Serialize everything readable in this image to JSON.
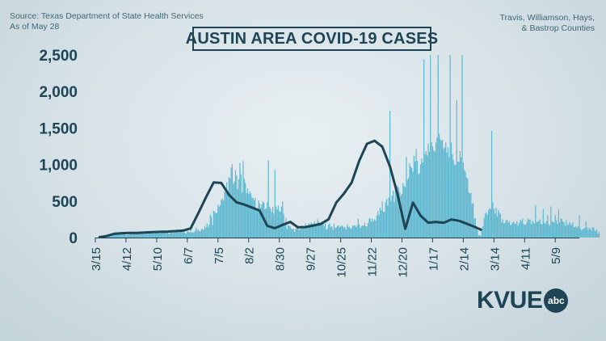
{
  "source": "Source: Texas Department of State Health Services",
  "as_of": "As of May 28",
  "counties_line1": "Travis, Williamson, Hays,",
  "counties_line2": "& Bastrop Counties",
  "logo_text": "KVUE",
  "logo_badge": "abc",
  "colors": {
    "bar": "#5fb8d0",
    "bar_stroke": "#4aa9c4",
    "line": "#1d4555",
    "text": "#1d4555"
  },
  "chart_data": {
    "type": "bar",
    "title": "AUSTIN AREA COVID-19 CASES",
    "xlabel": "",
    "ylabel": "",
    "ylim": [
      0,
      2500
    ],
    "y_ticks": [
      "0",
      "500",
      "1,000",
      "1,500",
      "2,000",
      "2,500"
    ],
    "y_tick_values": [
      0,
      500,
      1000,
      1500,
      2000,
      2500
    ],
    "x_ticks": [
      "3/15",
      "4/12",
      "5/10",
      "6/7",
      "7/5",
      "8/2",
      "8/30",
      "9/27",
      "10/25",
      "11/22",
      "12/20",
      "1/17",
      "2/14",
      "3/14",
      "4/11",
      "5/9"
    ],
    "x_start": "2020-03-15",
    "x_end": "2021-05-28",
    "grid": false,
    "series": [
      {
        "kind": "bar",
        "granularity": "daily",
        "values": [
          2,
          0,
          3,
          2,
          10,
          14,
          0,
          19,
          20,
          13,
          21,
          22,
          25,
          37,
          18,
          53,
          49,
          55,
          55,
          58,
          58,
          75,
          46,
          51,
          78,
          73,
          59,
          73,
          32,
          37,
          34,
          63,
          56,
          54,
          74,
          51,
          59,
          54,
          51,
          61,
          81,
          55,
          60,
          72,
          47,
          60,
          58,
          51,
          77,
          68,
          64,
          65,
          63,
          70,
          54,
          69,
          81,
          66,
          60,
          59,
          92,
          74,
          79,
          97,
          60,
          88,
          78,
          52,
          56,
          97,
          88,
          62,
          69,
          76,
          86,
          73,
          69,
          81,
          103,
          77,
          74,
          89,
          60,
          55,
          93,
          79,
          69,
          106,
          69,
          74,
          69,
          88,
          137,
          97,
          110,
          86,
          88,
          114,
          120,
          106,
          160,
          136,
          195,
          145,
          176,
          314,
          284,
          170,
          366,
          353,
          332,
          338,
          450,
          423,
          443,
          516,
          536,
          505,
          626,
          628,
          758,
          602,
          829,
          807,
          956,
          1002,
          735,
          770,
          924,
          854,
          666,
          796,
          1021,
          868,
          619,
          1048,
          801,
          747,
          609,
          670,
          598,
          633,
          607,
          549,
          540,
          510,
          546,
          404,
          374,
          511,
          466,
          409,
          458,
          493,
          478,
          386,
          398,
          482,
          1057,
          421,
          398,
          349,
          422,
          324,
          927,
          423,
          387,
          440,
          359,
          353,
          426,
          496,
          324,
          189,
          266,
          117,
          167,
          169,
          150,
          117,
          120,
          117,
          80,
          117,
          141,
          126,
          111,
          112,
          152,
          134,
          132,
          141,
          191,
          150,
          147,
          195,
          178,
          205,
          192,
          168,
          224,
          166,
          192,
          251,
          218,
          202,
          166,
          221,
          198,
          152,
          193,
          108,
          122,
          175,
          197,
          143,
          153,
          109,
          192,
          133,
          139,
          160,
          170,
          140,
          153,
          170,
          154,
          133,
          145,
          109,
          179,
          147,
          147,
          121,
          126,
          166,
          159,
          173,
          146,
          164,
          260,
          178,
          131,
          156,
          164,
          165,
          204,
          156,
          150,
          198,
          259,
          265,
          215,
          262,
          222,
          250,
          230,
          300,
          365,
          314,
          410,
          374,
          493,
          356,
          350,
          484,
          526,
          437,
          546,
          1738,
          499,
          575,
          641,
          485,
          693,
          606,
          711,
          684,
          617,
          574,
          601,
          750,
          707,
          693,
          1106,
          790,
          819,
          1012,
          971,
          951,
          899,
          1117,
          1045,
          1212,
          1050,
          867,
          881,
          1005,
          1085,
          1029,
          2438,
          1139,
          1182,
          1122,
          1286,
          1174,
          2500,
          1306,
          1252,
          1194,
          1176,
          1300,
          1364,
          2500,
          1418,
          1347,
          1325,
          1338,
          1209,
          1234,
          1304,
          1162,
          1237,
          1100,
          2500,
          1304,
          1143,
          1060,
          994,
          1001,
          1884,
          1039,
          1038,
          1184,
          1096,
          2500,
          1027,
          928,
          898,
          821,
          808,
          618,
          605,
          614,
          461,
          475,
          260,
          266,
          155,
          99,
          29,
          31,
          23,
          120,
          155,
          266,
          326,
          343,
          310,
          373,
          402,
          387,
          1461,
          483,
          394,
          329,
          408,
          290,
          377,
          341,
          320,
          209,
          249,
          195,
          200,
          236,
          242,
          203,
          228,
          171,
          178,
          209,
          218,
          190,
          188,
          226,
          162,
          199,
          244,
          226,
          260,
          186,
          174,
          178,
          209,
          262,
          244,
          251,
          180,
          229,
          204,
          189,
          441,
          213,
          215,
          227,
          249,
          188,
          178,
          393,
          201,
          189,
          224,
          306,
          186,
          165,
          428,
          219,
          215,
          204,
          308,
          238,
          189,
          384,
          210,
          264,
          253,
          221,
          205,
          161,
          241,
          170,
          179,
          216,
          184,
          171,
          209,
          142,
          139,
          159,
          136,
          151,
          302,
          122,
          97,
          114,
          123,
          130,
          221,
          139,
          101,
          135,
          119,
          95,
          142,
          135,
          96,
          87,
          112,
          56,
          77
        ]
      },
      {
        "kind": "line",
        "name": "",
        "granularity": "weekly",
        "values": [
          4,
          20,
          51,
          60,
          64,
          63,
          70,
          74,
          79,
          82,
          88,
          95,
          125,
          333,
          551,
          754,
          748,
          585,
          482,
          451,
          412,
          369,
          160,
          128,
          174,
          215,
          140,
          144,
          165,
          187,
          251,
          479,
          603,
          752,
          1051,
          1283,
          1325,
          1245,
          975,
          588,
          120,
          479,
          300,
          204,
          215,
          201,
          248,
          230,
          190,
          148,
          103
        ]
      }
    ]
  }
}
